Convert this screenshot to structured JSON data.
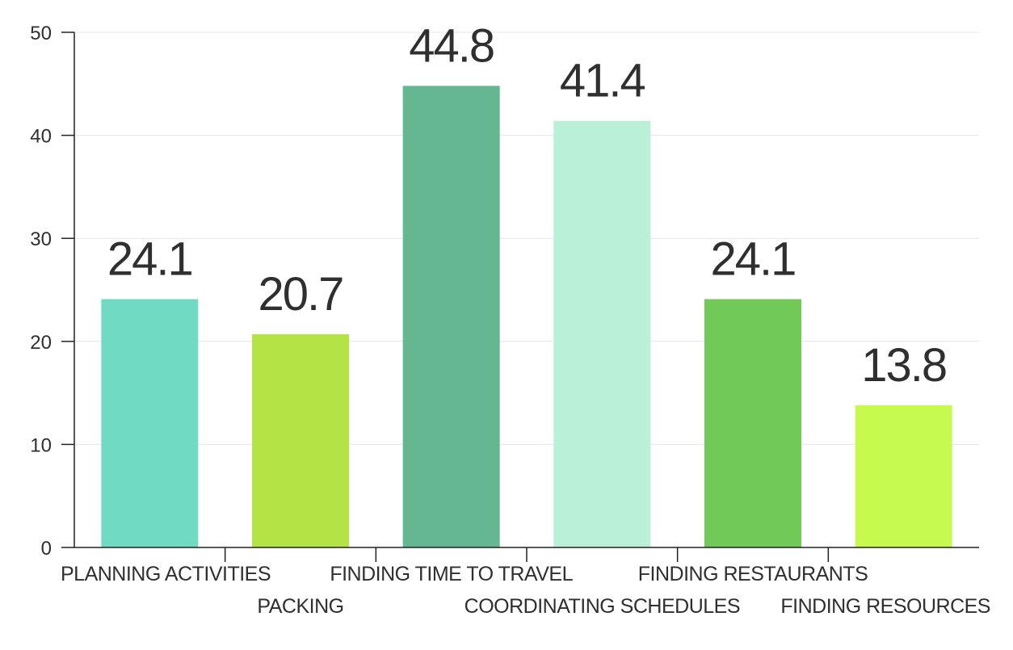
{
  "chart_data": {
    "type": "bar",
    "title": "",
    "xlabel": "",
    "ylabel": "",
    "categories": [
      "PLANNING ACTIVITIES",
      "PACKING",
      "FINDING TIME TO TRAVEL",
      "COORDINATING SCHEDULES",
      "FINDING RESTAURANTS",
      "FINDING RESOURCES"
    ],
    "values": [
      24.1,
      20.7,
      44.8,
      41.4,
      24.1,
      13.8
    ],
    "value_labels": [
      "24.1",
      "20.7",
      "44.8",
      "41.4",
      "24.1",
      "13.8"
    ],
    "colors": [
      "#70dbc2",
      "#b3e345",
      "#64b791",
      "#baf0d8",
      "#71c957",
      "#c6fa4f"
    ],
    "ylim": [
      0,
      50
    ],
    "yticks": [
      0,
      10,
      20,
      30,
      40,
      50
    ],
    "ytick_labels": [
      "0",
      "10",
      "20",
      "30",
      "40",
      "50"
    ],
    "grid": true,
    "legend": "none"
  }
}
